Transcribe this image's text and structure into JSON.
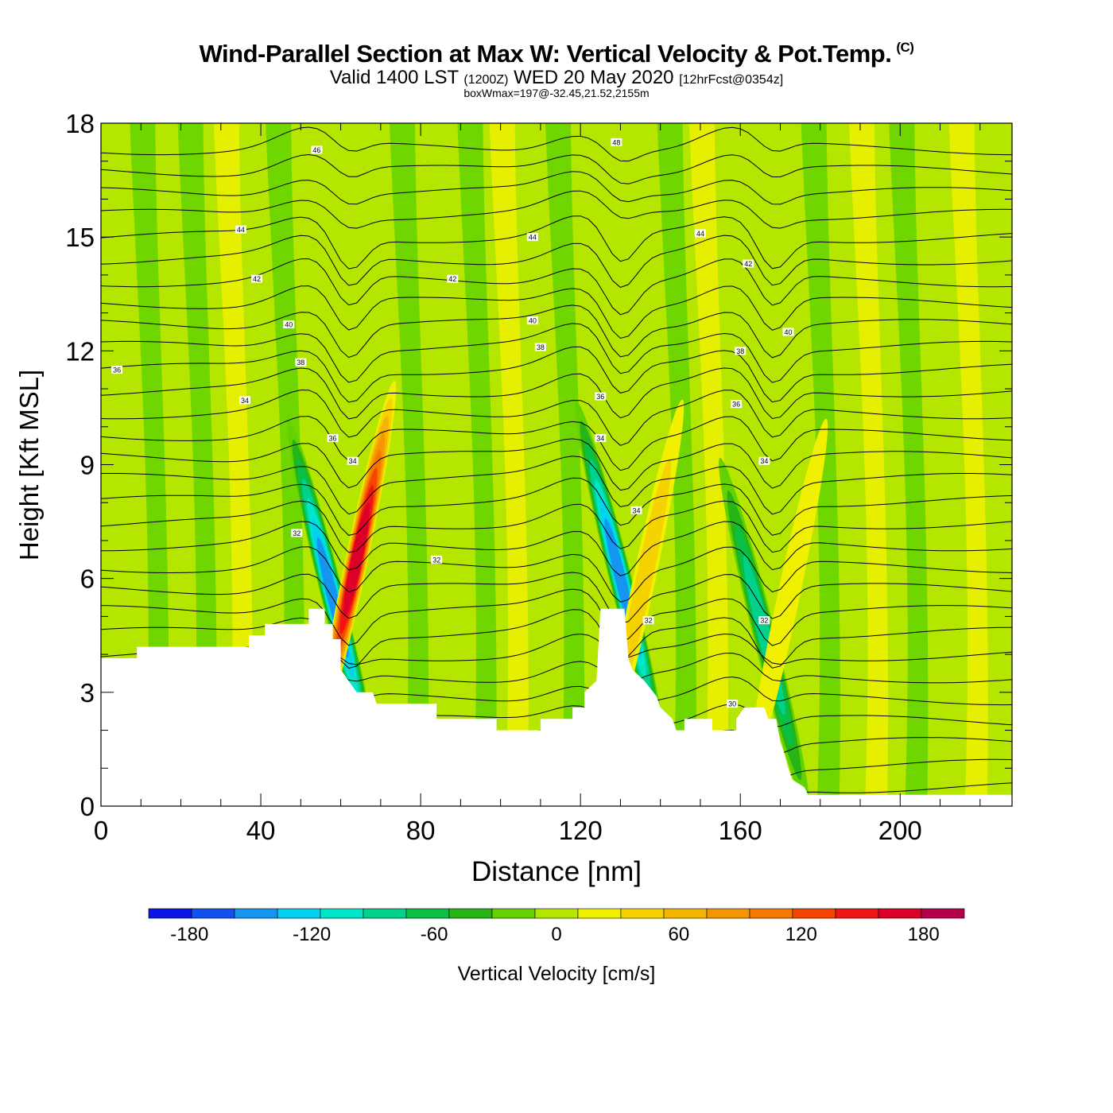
{
  "header": {
    "title": "Wind-Parallel Section at Max W: Vertical Velocity & Pot.Temp.",
    "copyright": "(C)",
    "valid_main": "Valid 1400 LST",
    "valid_utc": "(1200Z)",
    "valid_date": "WED 20 May 2020",
    "forecast": "[12hrFcst@0354z]",
    "boxwmax": "boxWmax=197@-32.45,21.52,2155m"
  },
  "chart_data": {
    "type": "heatmap",
    "title": "Wind-Parallel Section at Max W: Vertical Velocity & Pot.Temp.",
    "xlabel": "Distance [nm]",
    "ylabel": "Height [Kft MSL]",
    "xlim": [
      0,
      228
    ],
    "ylim": [
      0,
      18
    ],
    "xticks": [
      0,
      40,
      80,
      120,
      160,
      200
    ],
    "yticks": [
      0,
      3,
      6,
      9,
      12,
      15,
      18
    ],
    "colorbar": {
      "label": "Vertical Velocity [cm/s]",
      "ticks": [
        -180,
        -120,
        -60,
        0,
        60,
        120,
        180
      ],
      "tick_labels": [
        "-180",
        "-120",
        "-60",
        "0",
        "60",
        "120",
        "180"
      ],
      "colors": [
        "#0a14e6",
        "#1450f0",
        "#1496f0",
        "#00d2f0",
        "#00e6c8",
        "#00d28c",
        "#0abe46",
        "#28b414",
        "#64d200",
        "#b4e600",
        "#f0f000",
        "#f5d200",
        "#f5b400",
        "#f59600",
        "#f57800",
        "#f54600",
        "#f01414",
        "#dc0028",
        "#b4004b"
      ],
      "min": -200,
      "max": 200
    },
    "terrain": [
      [
        0,
        3.9
      ],
      [
        9,
        3.9
      ],
      [
        9,
        4.2
      ],
      [
        37,
        4.2
      ],
      [
        37,
        4.5
      ],
      [
        41,
        4.5
      ],
      [
        41,
        4.8
      ],
      [
        52,
        4.8
      ],
      [
        52,
        5.2
      ],
      [
        56,
        5.2
      ],
      [
        56,
        4.8
      ],
      [
        58,
        4.8
      ],
      [
        58,
        4.4
      ],
      [
        60,
        4.4
      ],
      [
        60,
        3.6
      ],
      [
        62,
        3.3
      ],
      [
        64,
        3.0
      ],
      [
        68,
        3.0
      ],
      [
        69,
        2.7
      ],
      [
        84,
        2.7
      ],
      [
        84,
        2.3
      ],
      [
        99,
        2.3
      ],
      [
        99,
        2.0
      ],
      [
        110,
        2.0
      ],
      [
        110,
        2.3
      ],
      [
        118,
        2.3
      ],
      [
        118,
        2.6
      ],
      [
        121,
        2.6
      ],
      [
        121,
        3.0
      ],
      [
        124,
        3.3
      ],
      [
        125,
        5.2
      ],
      [
        131,
        5.2
      ],
      [
        132,
        3.9
      ],
      [
        133,
        3.6
      ],
      [
        136,
        3.3
      ],
      [
        139,
        2.9
      ],
      [
        140,
        2.6
      ],
      [
        143,
        2.3
      ],
      [
        144,
        2.0
      ],
      [
        146,
        2.0
      ],
      [
        146,
        2.3
      ],
      [
        153,
        2.3
      ],
      [
        153,
        2.0
      ],
      [
        159,
        2.0
      ],
      [
        159,
        2.3
      ],
      [
        161,
        2.6
      ],
      [
        166,
        2.6
      ],
      [
        167,
        2.3
      ],
      [
        169,
        2.3
      ],
      [
        170,
        1.7
      ],
      [
        171,
        1.4
      ],
      [
        172,
        1.0
      ],
      [
        173,
        0.7
      ],
      [
        176,
        0.5
      ],
      [
        177,
        0.3
      ],
      [
        228,
        0.3
      ]
    ],
    "features": [
      {
        "x": 58,
        "y": 5.5,
        "w": -150
      },
      {
        "x": 64,
        "y": 6.5,
        "w": 170
      },
      {
        "x": 130,
        "y": 6.0,
        "w": -140
      },
      {
        "x": 136,
        "y": 6.0,
        "w": 55
      },
      {
        "x": 166,
        "y": 4.5,
        "w": -90
      },
      {
        "x": 172,
        "y": 5.5,
        "w": 30
      }
    ],
    "contour_labels": [
      {
        "x": 54,
        "y": 17.3,
        "text": "46"
      },
      {
        "x": 129,
        "y": 17.5,
        "text": "48"
      },
      {
        "x": 35,
        "y": 15.2,
        "text": "44"
      },
      {
        "x": 108,
        "y": 15.0,
        "text": "44"
      },
      {
        "x": 150,
        "y": 15.1,
        "text": "44"
      },
      {
        "x": 39,
        "y": 13.9,
        "text": "42"
      },
      {
        "x": 88,
        "y": 13.9,
        "text": "42"
      },
      {
        "x": 162,
        "y": 14.3,
        "text": "42"
      },
      {
        "x": 47,
        "y": 12.7,
        "text": "40"
      },
      {
        "x": 108,
        "y": 12.8,
        "text": "40"
      },
      {
        "x": 172,
        "y": 12.5,
        "text": "40"
      },
      {
        "x": 50,
        "y": 11.7,
        "text": "38"
      },
      {
        "x": 110,
        "y": 12.1,
        "text": "38"
      },
      {
        "x": 160,
        "y": 12.0,
        "text": "38"
      },
      {
        "x": 4,
        "y": 11.5,
        "text": "36"
      },
      {
        "x": 125,
        "y": 10.8,
        "text": "36"
      },
      {
        "x": 159,
        "y": 10.6,
        "text": "36"
      },
      {
        "x": 36,
        "y": 10.7,
        "text": "34"
      },
      {
        "x": 58,
        "y": 9.7,
        "text": "36"
      },
      {
        "x": 63,
        "y": 9.1,
        "text": "34"
      },
      {
        "x": 125,
        "y": 9.7,
        "text": "34"
      },
      {
        "x": 134,
        "y": 7.8,
        "text": "34"
      },
      {
        "x": 166,
        "y": 9.1,
        "text": "34"
      },
      {
        "x": 49,
        "y": 7.2,
        "text": "32"
      },
      {
        "x": 84,
        "y": 6.5,
        "text": "32"
      },
      {
        "x": 137,
        "y": 4.9,
        "text": "32"
      },
      {
        "x": 166,
        "y": 4.9,
        "text": "32"
      },
      {
        "x": 158,
        "y": 2.7,
        "text": "30"
      }
    ]
  }
}
